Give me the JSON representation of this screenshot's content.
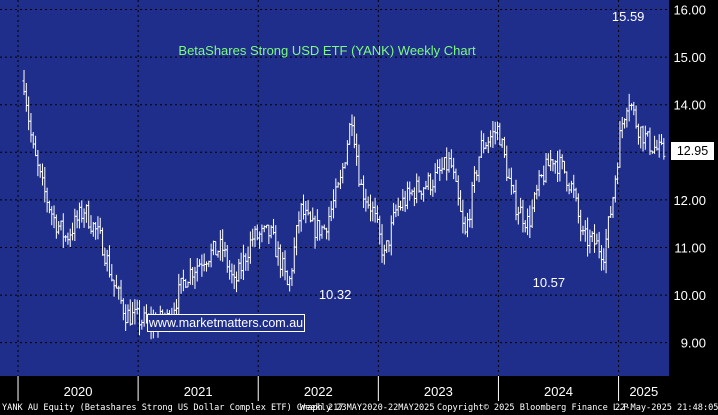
{
  "chart_data": {
    "type": "ohlc",
    "title": "BetaShares Strong USD ETF (YANK) Weekly Chart",
    "ylim": [
      8.3,
      16.2
    ],
    "y_ticks": [
      "16.00",
      "15.00",
      "14.00",
      "13.00",
      "12.00",
      "11.00",
      "10.00",
      "9.00"
    ],
    "x_ticks": [
      "2020",
      "2021",
      "2022",
      "2023",
      "2024",
      "2025"
    ],
    "grid": true,
    "last_price": "12.95",
    "annotations": [
      {
        "label": "15.59",
        "x": 2025.08,
        "y": 15.59
      },
      {
        "label": "10.32",
        "x": 2022.64,
        "y": 10.32
      },
      {
        "label": "10.57",
        "x": 2024.42,
        "y": 10.57
      }
    ],
    "closes": [
      {
        "x": 2020.05,
        "y": 14.5
      },
      {
        "x": 2020.12,
        "y": 13.1
      },
      {
        "x": 2020.2,
        "y": 12.3
      },
      {
        "x": 2020.3,
        "y": 11.6
      },
      {
        "x": 2020.4,
        "y": 11.2
      },
      {
        "x": 2020.55,
        "y": 11.8
      },
      {
        "x": 2020.7,
        "y": 11.1
      },
      {
        "x": 2020.8,
        "y": 10.2
      },
      {
        "x": 2020.9,
        "y": 9.6
      },
      {
        "x": 2021.0,
        "y": 9.5
      },
      {
        "x": 2021.1,
        "y": 9.4
      },
      {
        "x": 2021.25,
        "y": 9.5
      },
      {
        "x": 2021.4,
        "y": 10.4
      },
      {
        "x": 2021.55,
        "y": 10.8
      },
      {
        "x": 2021.7,
        "y": 11.0
      },
      {
        "x": 2021.8,
        "y": 10.2
      },
      {
        "x": 2021.95,
        "y": 11.2
      },
      {
        "x": 2022.1,
        "y": 11.3
      },
      {
        "x": 2022.2,
        "y": 10.6
      },
      {
        "x": 2022.25,
        "y": 10.1
      },
      {
        "x": 2022.35,
        "y": 11.8
      },
      {
        "x": 2022.45,
        "y": 11.4
      },
      {
        "x": 2022.55,
        "y": 11.4
      },
      {
        "x": 2022.68,
        "y": 12.3
      },
      {
        "x": 2022.78,
        "y": 13.8
      },
      {
        "x": 2022.85,
        "y": 12.3
      },
      {
        "x": 2022.95,
        "y": 11.8
      },
      {
        "x": 2023.05,
        "y": 10.8
      },
      {
        "x": 2023.15,
        "y": 11.8
      },
      {
        "x": 2023.3,
        "y": 12.2
      },
      {
        "x": 2023.45,
        "y": 12.4
      },
      {
        "x": 2023.6,
        "y": 12.8
      },
      {
        "x": 2023.72,
        "y": 11.2
      },
      {
        "x": 2023.85,
        "y": 13.1
      },
      {
        "x": 2024.0,
        "y": 13.5
      },
      {
        "x": 2024.12,
        "y": 12.0
      },
      {
        "x": 2024.25,
        "y": 11.5
      },
      {
        "x": 2024.35,
        "y": 12.4
      },
      {
        "x": 2024.45,
        "y": 12.9
      },
      {
        "x": 2024.55,
        "y": 12.6
      },
      {
        "x": 2024.62,
        "y": 12.2
      },
      {
        "x": 2024.7,
        "y": 11.2
      },
      {
        "x": 2024.8,
        "y": 11.1
      },
      {
        "x": 2024.88,
        "y": 10.9
      },
      {
        "x": 2024.95,
        "y": 12.0
      },
      {
        "x": 2025.02,
        "y": 13.5
      },
      {
        "x": 2025.08,
        "y": 14.2
      },
      {
        "x": 2025.15,
        "y": 13.6
      },
      {
        "x": 2025.25,
        "y": 13.2
      },
      {
        "x": 2025.35,
        "y": 13.0
      },
      {
        "x": 2025.39,
        "y": 12.95
      }
    ]
  },
  "footer": {
    "security": "YANK AU Equity (Betashares Strong US Dollar Complex ETF) Graph 217",
    "range": "Weekly 23MAY2020-22MAY2025",
    "copyright": "Copyright© 2025 Bloomberg Finance L.P.",
    "timestamp": "22-May-2025 21:48:05"
  },
  "watermark": "www.marketmatters.com.au",
  "colors": {
    "plot_bg": "#1f2e8a",
    "grid": "#000000",
    "bars": "#ffffff",
    "title": "#7CFC7C"
  }
}
